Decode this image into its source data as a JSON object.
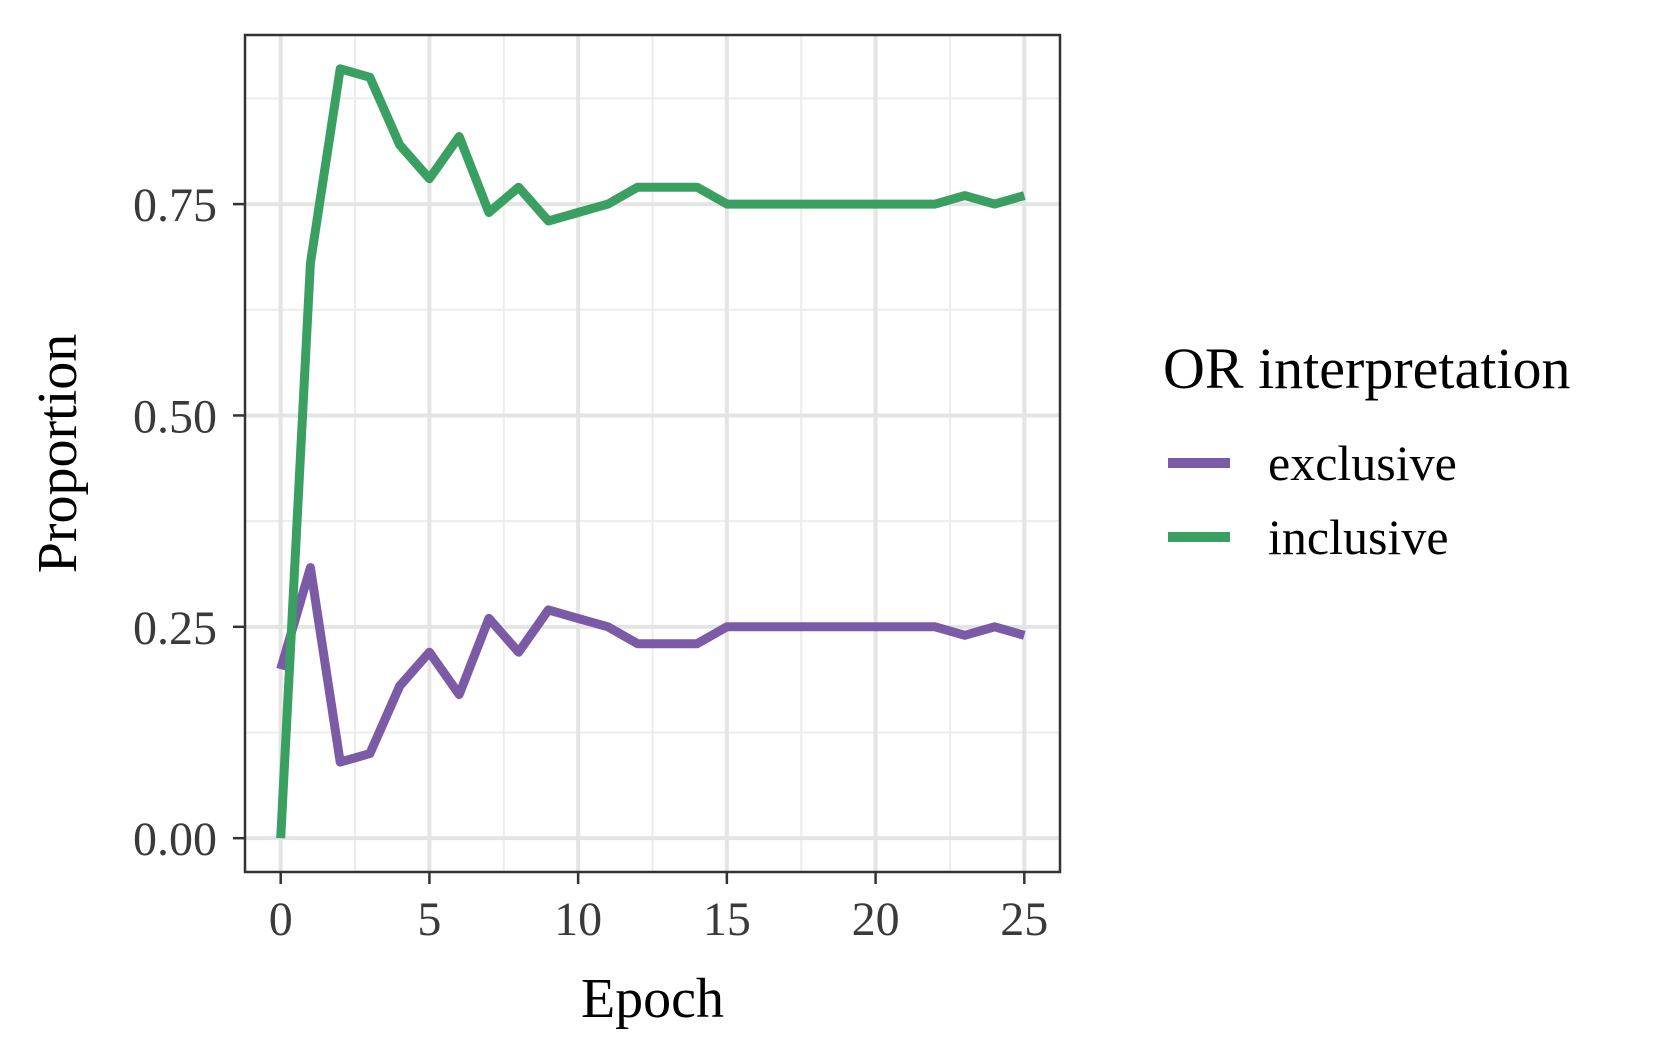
{
  "chart_data": {
    "type": "line",
    "title": "",
    "xlabel": "Epoch",
    "ylabel": "Proportion",
    "xlim": [
      -1.2,
      26.2
    ],
    "ylim": [
      -0.04,
      0.95
    ],
    "xticks": [
      0,
      5,
      10,
      15,
      20,
      25
    ],
    "yticks": [
      0,
      0.25,
      0.5,
      0.75
    ],
    "ytick_labels": [
      "0.00",
      "0.25",
      "0.50",
      "0.75"
    ],
    "grid": true,
    "legend": {
      "title": "OR interpretation",
      "position": "right"
    },
    "x": [
      0,
      1,
      2,
      3,
      4,
      5,
      6,
      7,
      8,
      9,
      10,
      11,
      12,
      13,
      14,
      15,
      16,
      17,
      18,
      19,
      20,
      21,
      22,
      23,
      24,
      25
    ],
    "series": [
      {
        "name": "exclusive",
        "color": "#7b5aa6",
        "values": [
          0.2,
          0.32,
          0.09,
          0.1,
          0.18,
          0.22,
          0.17,
          0.26,
          0.22,
          0.27,
          0.26,
          0.25,
          0.23,
          0.23,
          0.23,
          0.25,
          0.25,
          0.25,
          0.25,
          0.25,
          0.25,
          0.25,
          0.25,
          0.24,
          0.25,
          0.24
        ]
      },
      {
        "name": "inclusive",
        "color": "#3aa062",
        "values": [
          0.0,
          0.68,
          0.91,
          0.9,
          0.82,
          0.78,
          0.83,
          0.74,
          0.77,
          0.73,
          0.74,
          0.75,
          0.77,
          0.77,
          0.77,
          0.75,
          0.75,
          0.75,
          0.75,
          0.75,
          0.75,
          0.75,
          0.75,
          0.76,
          0.75,
          0.76
        ]
      }
    ]
  }
}
